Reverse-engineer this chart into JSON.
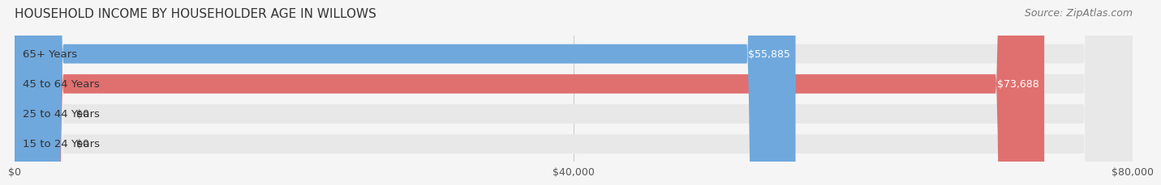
{
  "title": "HOUSEHOLD INCOME BY HOUSEHOLDER AGE IN WILLOWS",
  "source": "Source: ZipAtlas.com",
  "categories": [
    "15 to 24 Years",
    "25 to 44 Years",
    "45 to 64 Years",
    "65+ Years"
  ],
  "values": [
    0,
    0,
    73688,
    55885
  ],
  "bar_colors": [
    "#f08080",
    "#f5c87a",
    "#e07070",
    "#6fa8dc"
  ],
  "label_colors": [
    "#888888",
    "#888888",
    "#ffffff",
    "#ffffff"
  ],
  "value_labels": [
    "$0",
    "$0",
    "$73,688",
    "$55,885"
  ],
  "xlim": [
    0,
    80000
  ],
  "xticks": [
    0,
    40000,
    80000
  ],
  "xticklabels": [
    "$0",
    "$40,000",
    "$80,000"
  ],
  "bg_color": "#f5f5f5",
  "bar_bg_color": "#e8e8e8",
  "title_fontsize": 11,
  "source_fontsize": 9,
  "label_fontsize": 9.5,
  "value_fontsize": 9,
  "bar_height": 0.62,
  "fig_width": 14.06,
  "fig_height": 2.33
}
